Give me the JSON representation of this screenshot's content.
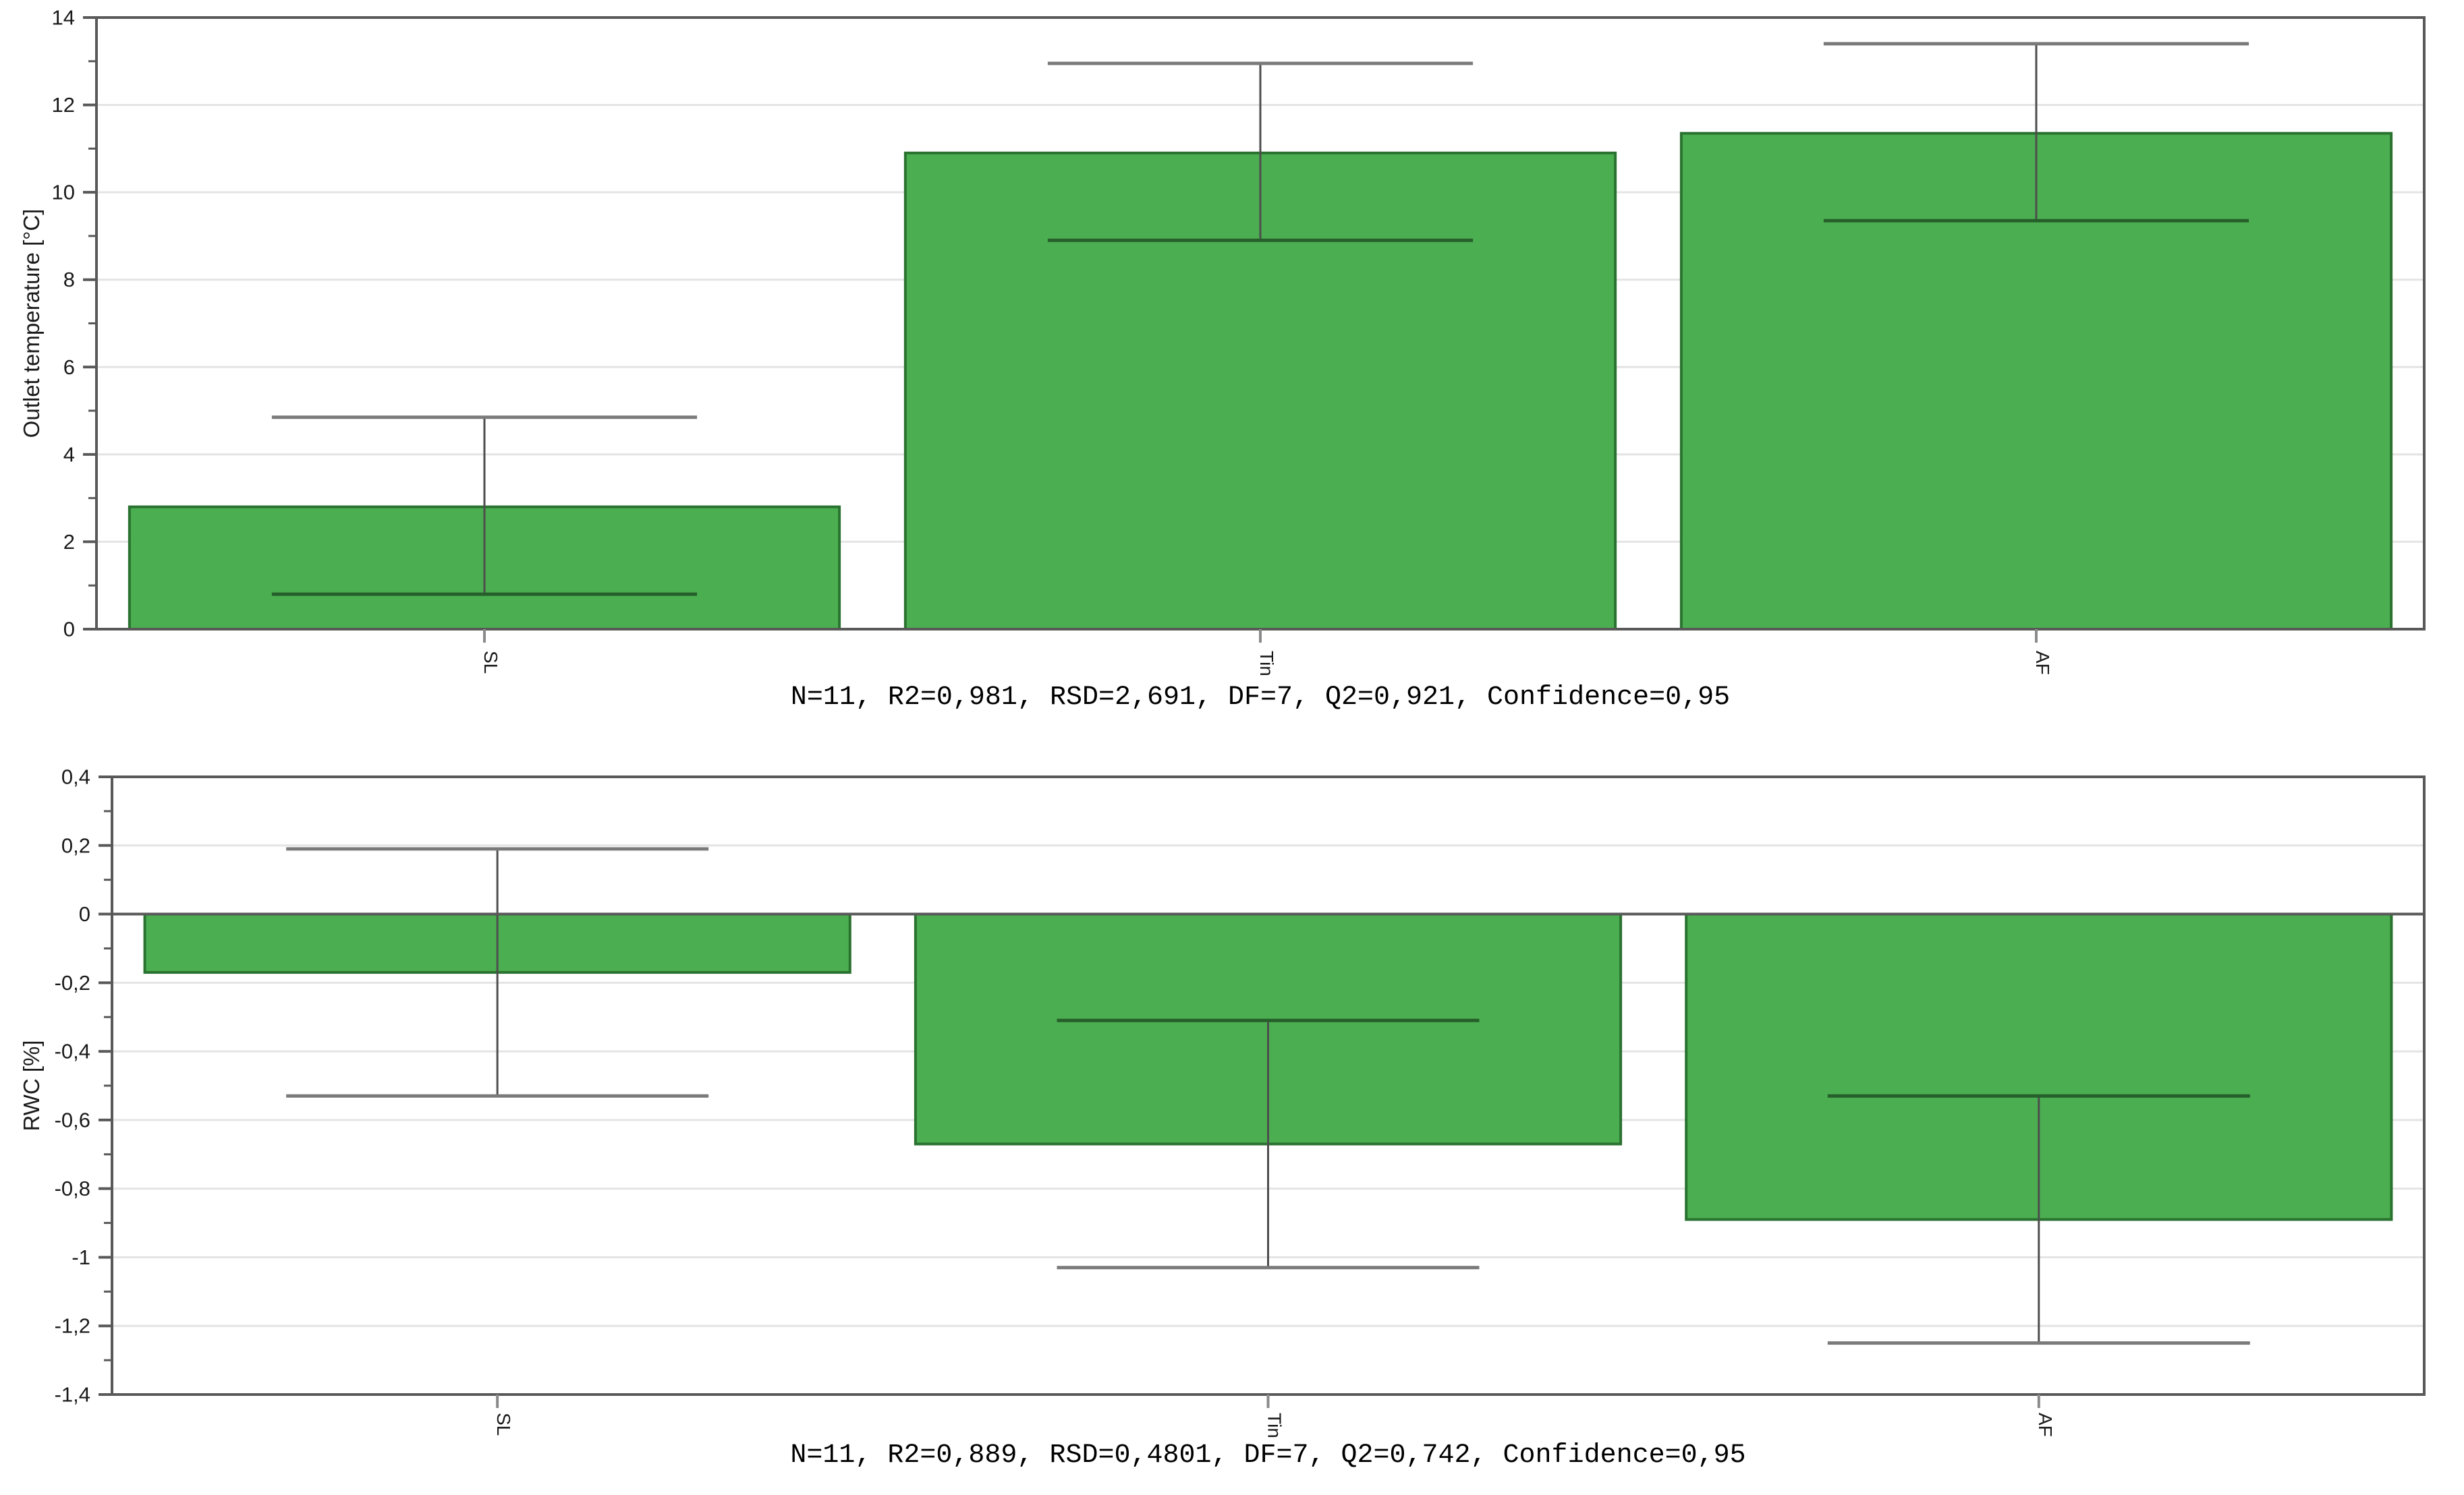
{
  "colors": {
    "background": "#ffffff",
    "bar_fill": "#4bae50",
    "bar_border": "#2a7230",
    "error_line": "#4d4d4d",
    "error_cap_outside": "#7a7a7a",
    "error_cap_inside": "#265f2b",
    "grid": "#e4e4e4",
    "frame": "#595959",
    "x_tick": "#8a8a8a",
    "text": "#1a1a1a"
  },
  "chart_data": [
    {
      "id": "outlet-temperature",
      "type": "bar",
      "title": "",
      "xlabel": "",
      "ylabel": "Outlet temperature [°C]",
      "categories": [
        "SL",
        "Tin",
        "AF"
      ],
      "values": [
        2.8,
        10.9,
        11.35
      ],
      "error_low": [
        0.8,
        8.9,
        9.35
      ],
      "error_high": [
        4.85,
        12.95,
        13.4
      ],
      "ylim": [
        0,
        14
      ],
      "grid": true,
      "legend": "none",
      "zero_line": false,
      "yticks": [
        {
          "v": 14,
          "label": "14"
        },
        {
          "v": 12,
          "label": "12"
        },
        {
          "v": 10,
          "label": "10"
        },
        {
          "v": 8,
          "label": "8"
        },
        {
          "v": 6,
          "label": "6"
        },
        {
          "v": 4,
          "label": "4"
        },
        {
          "v": 2,
          "label": "2"
        },
        {
          "v": 0,
          "label": "0"
        }
      ],
      "minor_ticks": [
        13,
        11,
        9,
        7,
        5,
        3,
        1
      ],
      "caption": "N=11, R2=0,981, RSD=2,691, DF=7, Q2=0,921, Confidence=0,95"
    },
    {
      "id": "rwc",
      "type": "bar",
      "title": "",
      "xlabel": "",
      "ylabel": "RWC [%]",
      "categories": [
        "SL",
        "Tin",
        "AF"
      ],
      "values": [
        -0.17,
        -0.67,
        -0.89
      ],
      "error_low": [
        -0.53,
        -1.03,
        -1.25
      ],
      "error_high": [
        0.19,
        -0.31,
        -0.53
      ],
      "ylim": [
        -1.4,
        0.4
      ],
      "grid": true,
      "legend": "none",
      "zero_line": true,
      "yticks": [
        {
          "v": 0.4,
          "label": "0,4"
        },
        {
          "v": 0.2,
          "label": "0,2"
        },
        {
          "v": 0,
          "label": "0"
        },
        {
          "v": -0.2,
          "label": "-0,2"
        },
        {
          "v": -0.4,
          "label": "-0,4"
        },
        {
          "v": -0.6,
          "label": "-0,6"
        },
        {
          "v": -0.8,
          "label": "-0,8"
        },
        {
          "v": -1,
          "label": "-1"
        },
        {
          "v": -1.2,
          "label": "-1,2"
        },
        {
          "v": -1.4,
          "label": "-1,4"
        }
      ],
      "minor_ticks": [
        0.3,
        0.1,
        -0.1,
        -0.3,
        -0.5,
        -0.7,
        -0.9,
        -1.1,
        -1.3
      ],
      "caption": "N=11, R2=0,889, RSD=0,4801, DF=7, Q2=0,742, Confidence=0,95"
    }
  ]
}
